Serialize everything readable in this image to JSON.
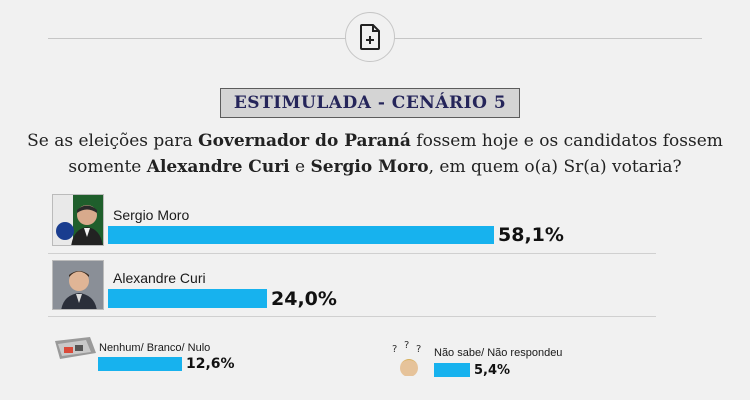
{
  "header": {
    "icon": "document-plus-icon",
    "heading": "ESTIMULADA - CENÁRIO 5"
  },
  "question": {
    "line1_part1": "Se as eleições para ",
    "line1_bold": "Governador do Paraná",
    "line1_part2": " fossem hoje e os candidatos fossem",
    "line2_part1": "somente ",
    "line2_bold1": "Alexandre Curi",
    "line2_part2": " e ",
    "line2_bold2": "Sergio Moro",
    "line2_part3": ", em quem o(a) Sr(a) votaria?"
  },
  "colors": {
    "bar": "#17b2ee",
    "heading_text": "#25255a",
    "heading_bg": "#d4d4d4"
  },
  "chart_data": {
    "type": "bar",
    "categories": [
      "Sergio Moro",
      "Alexandre Curi",
      "Nenhum/ Branco/ Nulo",
      "Não sabe/ Não respondeu"
    ],
    "values": [
      58.1,
      24.0,
      12.6,
      5.4
    ],
    "value_labels": [
      "58,1%",
      "24,0%",
      "12,6%",
      "5,4%"
    ],
    "unit": "%"
  }
}
